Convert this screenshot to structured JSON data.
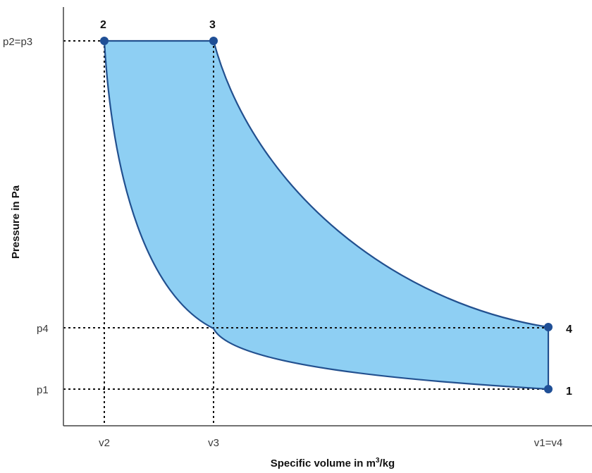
{
  "diagram": {
    "y_axis_label": "Pressure in Pa",
    "x_axis_label_main": "Specific volume in m",
    "x_axis_label_sup": "3",
    "x_axis_label_tail": "/kg",
    "y_ticks": {
      "p23": "p2=p3",
      "p4": "p4",
      "p1": "p1"
    },
    "x_ticks": {
      "v2": "v2",
      "v3": "v3",
      "v14": "v1=v4"
    },
    "points": {
      "p1": "1",
      "p2": "2",
      "p3": "3",
      "p4": "4"
    },
    "colors": {
      "fill": "#8ecff3",
      "curve": "#22508f",
      "point": "#1f4f96",
      "guide": "#111111",
      "axis": "#444444"
    }
  }
}
